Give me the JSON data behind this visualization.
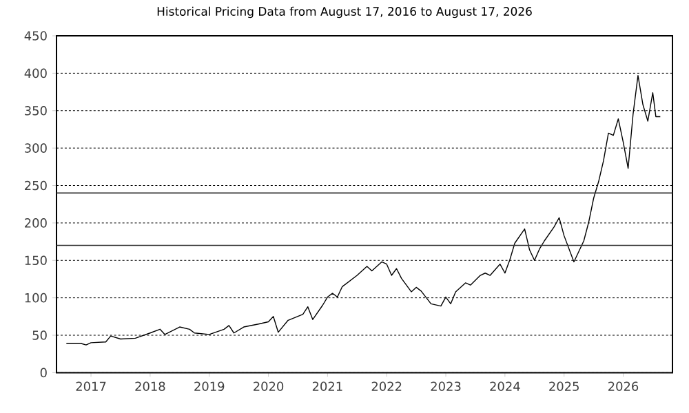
{
  "chart_data": {
    "type": "line",
    "title": "Historical Pricing Data from August 17, 2016 to August 17, 2026",
    "x": [
      "2016-08",
      "2016-11",
      "2016-12",
      "2017-01",
      "2017-04",
      "2017-05",
      "2017-07",
      "2017-10",
      "2018-01",
      "2018-03",
      "2018-04",
      "2018-07",
      "2018-09",
      "2018-10",
      "2019-01",
      "2019-04",
      "2019-05",
      "2019-06",
      "2019-08",
      "2019-11",
      "2020-01",
      "2020-02",
      "2020-03",
      "2020-05",
      "2020-08",
      "2020-09",
      "2020-10",
      "2020-12",
      "2021-01",
      "2021-02",
      "2021-03",
      "2021-04",
      "2021-07",
      "2021-09",
      "2021-10",
      "2021-12",
      "2022-01",
      "2022-02",
      "2022-03",
      "2022-04",
      "2022-06",
      "2022-07",
      "2022-08",
      "2022-10",
      "2022-12",
      "2023-01",
      "2023-02",
      "2023-03",
      "2023-05",
      "2023-06",
      "2023-08",
      "2023-09",
      "2023-10",
      "2023-12",
      "2024-01",
      "2024-02",
      "2024-03",
      "2024-05",
      "2024-06",
      "2024-07",
      "2024-08",
      "2024-09",
      "2024-11",
      "2024-12",
      "2025-01",
      "2025-03",
      "2025-05",
      "2025-06",
      "2025-07",
      "2025-08",
      "2025-09",
      "2025-10",
      "2025-11",
      "2025-12",
      "2026-01",
      "2026-02",
      "2026-03",
      "2026-04",
      "2026-05",
      "2026-06",
      "2026-07",
      "2026-07-20",
      "2026-08-17"
    ],
    "values": [
      39,
      39,
      37,
      40,
      41,
      49,
      45,
      46,
      53,
      58,
      51,
      61,
      58,
      53,
      51,
      58,
      63,
      53,
      61,
      65,
      68,
      75,
      54,
      70,
      78,
      88,
      71,
      90,
      101,
      106,
      101,
      115,
      130,
      142,
      136,
      148,
      145,
      130,
      139,
      126,
      108,
      114,
      109,
      92,
      89,
      101,
      92,
      108,
      120,
      117,
      130,
      133,
      130,
      145,
      133,
      151,
      173,
      192,
      164,
      150,
      165,
      176,
      195,
      207,
      183,
      148,
      176,
      201,
      233,
      255,
      283,
      320,
      317,
      339,
      308,
      273,
      345,
      397,
      358,
      336,
      374,
      342,
      342
    ],
    "color": "#000000",
    "xlim": [
      "2016-06",
      "2026-11"
    ],
    "xticks": [
      "2017",
      "2018",
      "2019",
      "2020",
      "2021",
      "2022",
      "2023",
      "2024",
      "2025",
      "2026"
    ],
    "ylim": [
      0,
      450
    ],
    "yticks": [
      0,
      50,
      100,
      150,
      200,
      250,
      300,
      350,
      400,
      450
    ],
    "grid": "y",
    "line_style": "solid",
    "ref_lines": [
      {
        "axis": "y",
        "value": 240,
        "color": "#333333"
      },
      {
        "axis": "y",
        "value": 170,
        "color": "#333333"
      }
    ]
  }
}
